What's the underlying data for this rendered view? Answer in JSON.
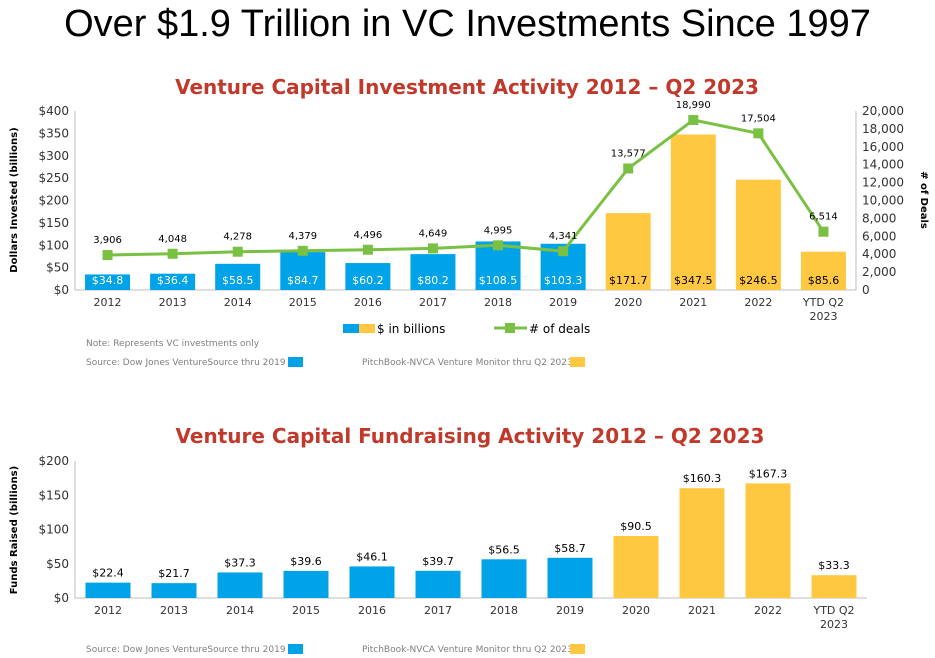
{
  "slide": {
    "title": "Over $1.9 Trillion in VC Investments Since 1997"
  },
  "colors": {
    "blue": "#00A3E8",
    "yellow": "#FFC840",
    "green": "#7AC143",
    "title_red": "#C0392B",
    "axis": "#bfbfbf",
    "text": "#333333",
    "note": "#7f7f7f"
  },
  "chart_data": [
    {
      "type": "bar",
      "title": "Venture Capital Investment Activity 2012 – Q2 2023",
      "categories": [
        "2012",
        "2013",
        "2014",
        "2015",
        "2016",
        "2017",
        "2018",
        "2019",
        "2020",
        "2021",
        "2022",
        "YTD Q2"
      ],
      "category_sublabels": [
        "",
        "",
        "",
        "",
        "",
        "",
        "",
        "",
        "",
        "",
        "",
        "2023"
      ],
      "series": [
        {
          "name": "$ in billions",
          "axis": "left",
          "values": [
            34.8,
            36.4,
            58.5,
            84.7,
            60.2,
            80.2,
            108.5,
            103.3,
            171.7,
            347.5,
            246.5,
            85.6
          ],
          "value_labels": [
            "$34.8",
            "$36.4",
            "$58.5",
            "$84.7",
            "$60.2",
            "$80.2",
            "$108.5",
            "$103.3",
            "$171.7",
            "$347.5",
            "$246.5",
            "$85.6"
          ],
          "color_by_source": [
            "blue",
            "blue",
            "blue",
            "blue",
            "blue",
            "blue",
            "blue",
            "blue",
            "yellow",
            "yellow",
            "yellow",
            "yellow"
          ]
        },
        {
          "name": "# of deals",
          "axis": "right",
          "type": "line",
          "values": [
            3906,
            4048,
            4278,
            4379,
            4496,
            4649,
            4995,
            4341,
            13577,
            18990,
            17504,
            6514
          ],
          "value_labels": [
            "3,906",
            "4,048",
            "4,278",
            "4,379",
            "4,496",
            "4,649",
            "4,995",
            "4,341",
            "13,577",
            "18,990",
            "17,504",
            "6,514"
          ]
        }
      ],
      "ylabel": "Dollars Invested (billions)",
      "ylabel_right": "# of Deals",
      "ylim": [
        0,
        400
      ],
      "ylim_right": [
        0,
        20000
      ],
      "yticks": [
        "$0",
        "$50",
        "$100",
        "$150",
        "$200",
        "$250",
        "$300",
        "$350",
        "$400"
      ],
      "yticks_values": [
        0,
        50,
        100,
        150,
        200,
        250,
        300,
        350,
        400
      ],
      "yticks_right": [
        "0",
        "2,000",
        "4,000",
        "6,000",
        "8,000",
        "10,000",
        "12,000",
        "14,000",
        "16,000",
        "18,000",
        "20,000"
      ],
      "yticks_right_values": [
        0,
        2000,
        4000,
        6000,
        8000,
        10000,
        12000,
        14000,
        16000,
        18000,
        20000
      ],
      "legend": {
        "bars": "$ in billions",
        "line": "# of deals",
        "placement": "bottom-center"
      },
      "note": "Note:  Represents VC investments only",
      "sources": [
        "Source: Dow Jones VentureSource thru 2019",
        "PitchBook-NVCA Venture Monitor thru Q2 2023"
      ]
    },
    {
      "type": "bar",
      "title": "Venture Capital Fundraising Activity 2012 – Q2 2023",
      "categories": [
        "2012",
        "2013",
        "2014",
        "2015",
        "2016",
        "2017",
        "2018",
        "2019",
        "2020",
        "2021",
        "2022",
        "YTD Q2"
      ],
      "category_sublabels": [
        "",
        "",
        "",
        "",
        "",
        "",
        "",
        "",
        "",
        "",
        "",
        "2023"
      ],
      "series": [
        {
          "name": "Funds Raised",
          "values": [
            22.4,
            21.7,
            37.3,
            39.6,
            46.1,
            39.7,
            56.5,
            58.7,
            90.5,
            160.3,
            167.3,
            33.3
          ],
          "value_labels": [
            "$22.4",
            "$21.7",
            "$37.3",
            "$39.6",
            "$46.1",
            "$39.7",
            "$56.5",
            "$58.7",
            "$90.5",
            "$160.3",
            "$167.3",
            "$33.3"
          ],
          "color_by_source": [
            "blue",
            "blue",
            "blue",
            "blue",
            "blue",
            "blue",
            "blue",
            "blue",
            "yellow",
            "yellow",
            "yellow",
            "yellow"
          ]
        }
      ],
      "ylabel": "Funds Raised (billions)",
      "ylim": [
        0,
        200
      ],
      "yticks": [
        "$0",
        "$50",
        "$100",
        "$150",
        "$200"
      ],
      "yticks_values": [
        0,
        50,
        100,
        150,
        200
      ],
      "sources": [
        "Source: Dow Jones VentureSource thru 2019",
        "PitchBook-NVCA Venture Monitor thru Q2 2023"
      ]
    }
  ]
}
